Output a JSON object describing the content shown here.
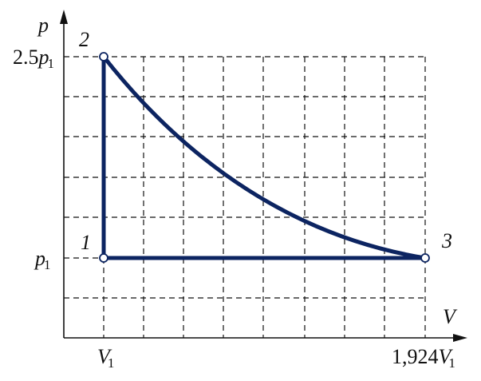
{
  "axes": {
    "y_label": "p",
    "x_label": "V"
  },
  "y_ticks": [
    {
      "coefficient": "2.5",
      "symbol": "p",
      "subscript": "1"
    },
    {
      "symbol": "p",
      "subscript": "1"
    }
  ],
  "x_ticks": [
    {
      "symbol": "V",
      "subscript": "1"
    },
    {
      "coefficient": "1,924",
      "symbol": "V",
      "subscript": "1"
    }
  ],
  "points": [
    {
      "label": "1"
    },
    {
      "label": "2"
    },
    {
      "label": "3"
    }
  ]
}
